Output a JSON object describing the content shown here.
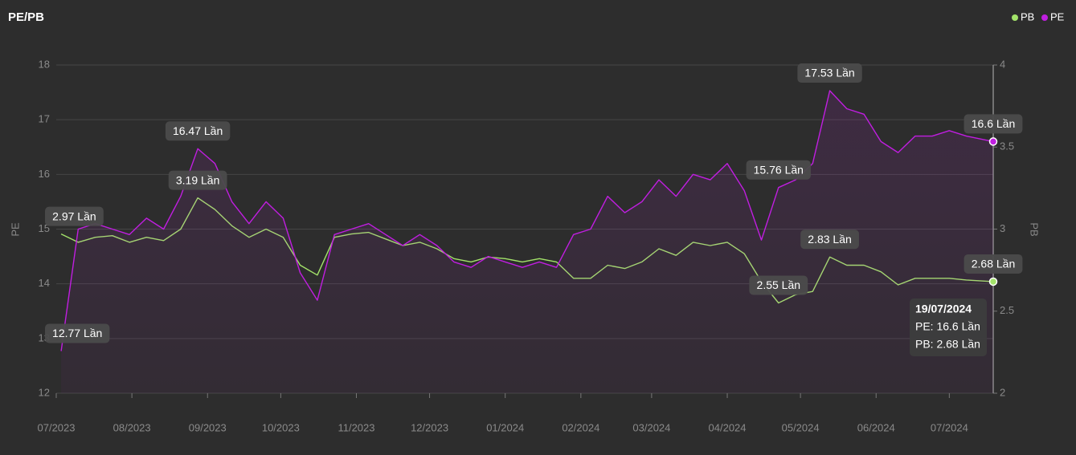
{
  "chart_data": {
    "type": "line",
    "title": "PE/PB",
    "y_label": "PE",
    "y2_label": "PB",
    "x": [
      "03/07/2023",
      "10/07/2023",
      "17/07/2023",
      "24/07/2023",
      "31/07/2023",
      "07/08/2023",
      "14/08/2023",
      "21/08/2023",
      "28/08/2023",
      "04/09/2023",
      "11/09/2023",
      "18/09/2023",
      "25/09/2023",
      "02/10/2023",
      "09/10/2023",
      "16/10/2023",
      "23/10/2023",
      "30/10/2023",
      "06/11/2023",
      "13/11/2023",
      "20/11/2023",
      "27/11/2023",
      "04/12/2023",
      "11/12/2023",
      "18/12/2023",
      "25/12/2023",
      "01/01/2024",
      "08/01/2024",
      "15/01/2024",
      "22/01/2024",
      "29/01/2024",
      "05/02/2024",
      "12/02/2024",
      "19/02/2024",
      "26/02/2024",
      "04/03/2024",
      "11/03/2024",
      "18/03/2024",
      "25/03/2024",
      "01/04/2024",
      "08/04/2024",
      "15/04/2024",
      "22/04/2024",
      "29/04/2024",
      "06/05/2024",
      "13/05/2024",
      "20/05/2024",
      "27/05/2024",
      "03/06/2024",
      "10/06/2024",
      "17/06/2024",
      "24/06/2024",
      "01/07/2024",
      "08/07/2024",
      "19/07/2024"
    ],
    "xlim": [
      "01/07/2023",
      "19/07/2024"
    ],
    "xticks": [
      "07/2023",
      "08/2023",
      "09/2023",
      "10/2023",
      "11/2023",
      "12/2023",
      "01/2024",
      "02/2024",
      "03/2024",
      "04/2024",
      "05/2024",
      "06/2024",
      "07/2024"
    ],
    "ylim": [
      12,
      18
    ],
    "yticks": [
      12,
      13,
      14,
      15,
      16,
      17,
      18
    ],
    "y2lim": [
      2,
      4
    ],
    "y2ticks": [
      2,
      2.5,
      3,
      3.5,
      4
    ],
    "grid": true,
    "legend": "top-right",
    "series": [
      {
        "name": "PB",
        "color": "#a3e36a",
        "axis": "y2",
        "values": [
          2.97,
          2.92,
          2.95,
          2.96,
          2.92,
          2.95,
          2.93,
          3.0,
          3.19,
          3.12,
          3.02,
          2.95,
          3.0,
          2.95,
          2.78,
          2.72,
          2.95,
          2.97,
          2.98,
          2.94,
          2.9,
          2.92,
          2.88,
          2.82,
          2.8,
          2.83,
          2.82,
          2.8,
          2.82,
          2.8,
          2.7,
          2.7,
          2.78,
          2.76,
          2.8,
          2.88,
          2.84,
          2.92,
          2.9,
          2.92,
          2.85,
          2.68,
          2.55,
          2.6,
          2.62,
          2.83,
          2.78,
          2.78,
          2.74,
          2.66,
          2.7,
          2.7,
          2.7,
          2.69,
          2.68
        ],
        "value_labels": [
          "2.97 Lần",
          null,
          null,
          null,
          null,
          null,
          null,
          null,
          "3.19 Lần",
          null,
          null,
          null,
          null,
          null,
          null,
          null,
          null,
          null,
          null,
          null,
          null,
          null,
          null,
          null,
          null,
          null,
          null,
          null,
          null,
          null,
          null,
          null,
          null,
          null,
          null,
          null,
          null,
          null,
          null,
          null,
          null,
          null,
          "2.55 Lần",
          null,
          null,
          "2.83 Lần",
          null,
          null,
          null,
          null,
          null,
          null,
          null,
          null,
          "2.68 Lần"
        ]
      },
      {
        "name": "PE",
        "color": "#c01ee0",
        "values": [
          12.77,
          15.0,
          15.1,
          15.0,
          14.9,
          15.2,
          15.0,
          15.6,
          16.47,
          16.2,
          15.5,
          15.1,
          15.5,
          15.2,
          14.2,
          13.7,
          14.9,
          15.0,
          15.1,
          14.9,
          14.7,
          14.9,
          14.7,
          14.4,
          14.3,
          14.5,
          14.4,
          14.3,
          14.4,
          14.3,
          14.9,
          15.0,
          15.6,
          15.3,
          15.5,
          15.9,
          15.6,
          16.0,
          15.9,
          16.2,
          15.7,
          14.8,
          15.76,
          15.9,
          16.2,
          17.53,
          17.2,
          17.1,
          16.6,
          16.4,
          16.7,
          16.7,
          16.8,
          16.7,
          16.6
        ],
        "value_labels": [
          "12.77 Lần",
          null,
          null,
          null,
          null,
          null,
          null,
          null,
          "16.47 Lần",
          null,
          null,
          null,
          null,
          null,
          null,
          null,
          null,
          null,
          null,
          null,
          null,
          null,
          null,
          null,
          null,
          null,
          null,
          null,
          null,
          null,
          null,
          null,
          null,
          null,
          null,
          null,
          null,
          null,
          null,
          null,
          null,
          null,
          "15.76 Lần",
          null,
          null,
          "17.53 Lần",
          null,
          null,
          null,
          null,
          null,
          null,
          null,
          null,
          "16.6 Lần"
        ]
      }
    ],
    "tooltip": {
      "lines": [
        "PE: 16.6 Lần",
        "PB: 2.68 Lần"
      ]
    }
  }
}
